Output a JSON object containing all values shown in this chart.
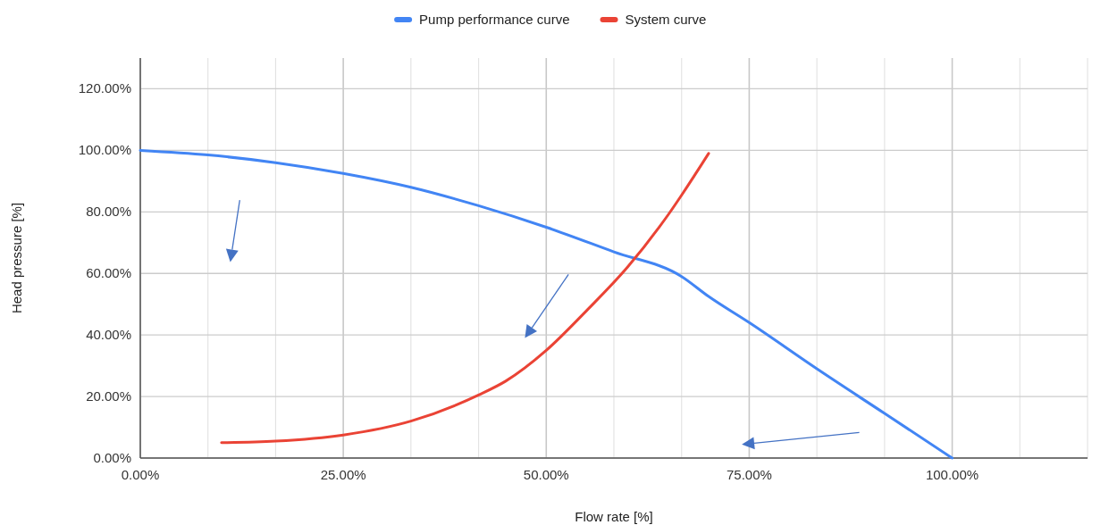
{
  "chart_data": {
    "type": "line",
    "xlabel": "Flow rate [%]",
    "ylabel": "Head pressure [%]",
    "xlim": [
      0,
      116.67
    ],
    "ylim": [
      0,
      130
    ],
    "xticks": [
      {
        "value": 0,
        "label": "0.00%"
      },
      {
        "value": 8.33,
        "label": null
      },
      {
        "value": 16.67,
        "label": null
      },
      {
        "value": 25,
        "label": "25.00%"
      },
      {
        "value": 33.33,
        "label": null
      },
      {
        "value": 41.67,
        "label": null
      },
      {
        "value": 50,
        "label": "50.00%"
      },
      {
        "value": 58.33,
        "label": null
      },
      {
        "value": 66.67,
        "label": null
      },
      {
        "value": 75,
        "label": "75.00%"
      },
      {
        "value": 83.33,
        "label": null
      },
      {
        "value": 91.67,
        "label": null
      },
      {
        "value": 100,
        "label": "100.00%"
      },
      {
        "value": 108.33,
        "label": null
      },
      {
        "value": 116.67,
        "label": null
      }
    ],
    "yticks": [
      {
        "value": 0,
        "label": "0.00%"
      },
      {
        "value": 20,
        "label": "20.00%"
      },
      {
        "value": 40,
        "label": "40.00%"
      },
      {
        "value": 60,
        "label": "60.00%"
      },
      {
        "value": 80,
        "label": "80.00%"
      },
      {
        "value": 100,
        "label": "100.00%"
      },
      {
        "value": 120,
        "label": "120.00%"
      }
    ],
    "grid": true,
    "legend": "top",
    "marker": "none",
    "line_style": "solid",
    "series": [
      {
        "name": "Pump performance curve",
        "color": "#4285f4",
        "x": [
          0,
          8.33,
          16.67,
          25,
          33.33,
          41.67,
          50,
          58.33,
          66.67,
          70,
          75,
          83.33,
          91.67,
          100
        ],
        "values": [
          100,
          98.5,
          96,
          92.5,
          88,
          82,
          75,
          67,
          59,
          52.5,
          44,
          29,
          14.5,
          0
        ]
      },
      {
        "name": "System curve",
        "color": "#ea4335",
        "x": [
          10,
          16.67,
          25,
          33.33,
          41.67,
          45,
          50,
          55,
          60,
          65,
          70
        ],
        "values": [
          5,
          5.5,
          7.5,
          12,
          20.5,
          25,
          35,
          48,
          62,
          79,
          99
        ]
      }
    ]
  }
}
